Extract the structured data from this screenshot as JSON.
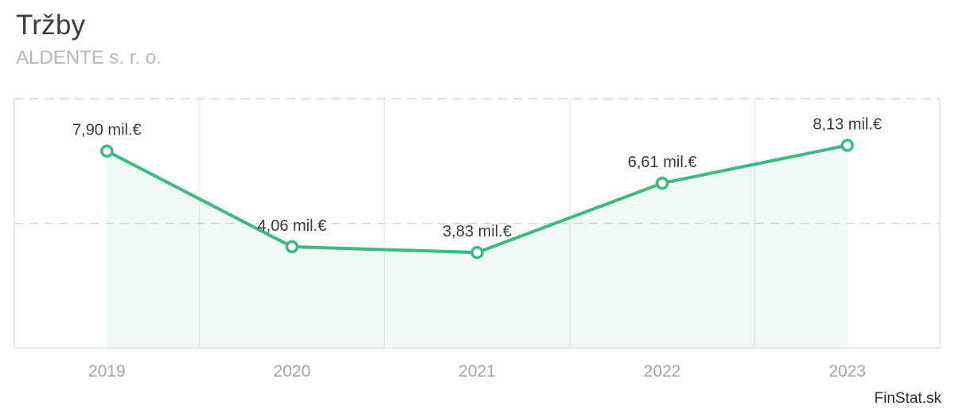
{
  "header": {
    "title": "Tržby",
    "subtitle": "ALDENTE s. r. o."
  },
  "footer": {
    "brand_label": "FinStat.sk"
  },
  "colors": {
    "line": "#3dba80",
    "marker_fill": "#ffffff",
    "area_fill": "#3dba80",
    "area_opacity": 0.09,
    "grid_dashed": "#d8d8d8",
    "grid_vertical": "#e9eef0",
    "plot_border": "#e4e4e4",
    "value_label": "#3b3b3b",
    "axis_label": "#a5a5a5",
    "title": "#3c3c3c",
    "subtitle": "#b8b8b8",
    "brand": "#2f2f2f"
  },
  "chart_data": {
    "type": "line",
    "title": "Tržby",
    "subtitle": "ALDENTE s. r. o.",
    "categories": [
      "2019",
      "2020",
      "2021",
      "2022",
      "2023"
    ],
    "series": [
      {
        "name": "Tržby",
        "values": [
          7.9,
          4.06,
          3.83,
          6.61,
          8.13
        ]
      }
    ],
    "point_labels": [
      "7,90 mil.€",
      "4,06 mil.€",
      "3,83 mil.€",
      "6,61 mil.€",
      "8,13 mil.€"
    ],
    "unit": "mil.€",
    "ylim": [
      0,
      10
    ],
    "gridlines_dashed_at_values": [
      5,
      10
    ],
    "vertical_band_separators": true,
    "area": true,
    "markers": true,
    "legend": "none"
  }
}
